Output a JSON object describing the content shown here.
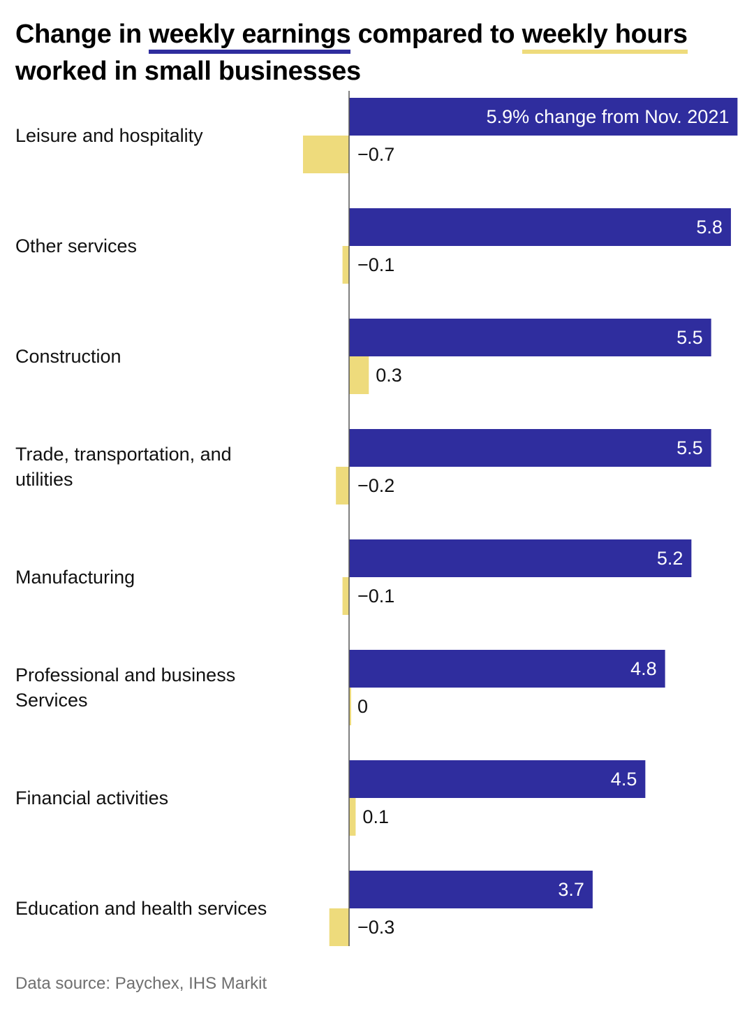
{
  "title": {
    "part1": "Change in ",
    "highlight1": "weekly earnings",
    "part2": " compared to ",
    "highlight2": "weekly hours",
    "part3": " worked in small businesses"
  },
  "colors": {
    "earnings": "#2f2d9e",
    "hours": "#eedb7c",
    "axis": "#555555"
  },
  "chart_data": {
    "type": "bar",
    "orientation": "horizontal",
    "title": "Change in weekly earnings compared to weekly hours worked in small businesses",
    "value_unit": "% change from Nov. 2021",
    "first_label_suffix": "% change from Nov. 2021",
    "categories": [
      [
        "Leisure and hospitality"
      ],
      [
        "Other services"
      ],
      [
        "Construction"
      ],
      [
        "Trade, transportation, and",
        "utilities"
      ],
      [
        "Manufacturing"
      ],
      [
        "Professional and business",
        "Services"
      ],
      [
        "Financial activities"
      ],
      [
        "Education and health services"
      ]
    ],
    "series": [
      {
        "name": "weekly earnings",
        "values": [
          5.9,
          5.8,
          5.5,
          5.5,
          5.2,
          4.8,
          4.5,
          3.7
        ],
        "labels": [
          "5.9",
          "5.8",
          "5.5",
          "5.5",
          "5.2",
          "4.8",
          "4.5",
          "3.7"
        ]
      },
      {
        "name": "weekly hours",
        "values": [
          -0.7,
          -0.1,
          0.3,
          -0.2,
          -0.1,
          0,
          0.1,
          -0.3
        ],
        "labels": [
          "−0.7",
          "−0.1",
          "0.3",
          "−0.2",
          "−0.1",
          "0",
          "0.1",
          "−0.3"
        ]
      }
    ],
    "xlim": [
      -0.7,
      5.9
    ]
  },
  "footer": {
    "source": "Data source: Paychex, IHS Markit"
  }
}
